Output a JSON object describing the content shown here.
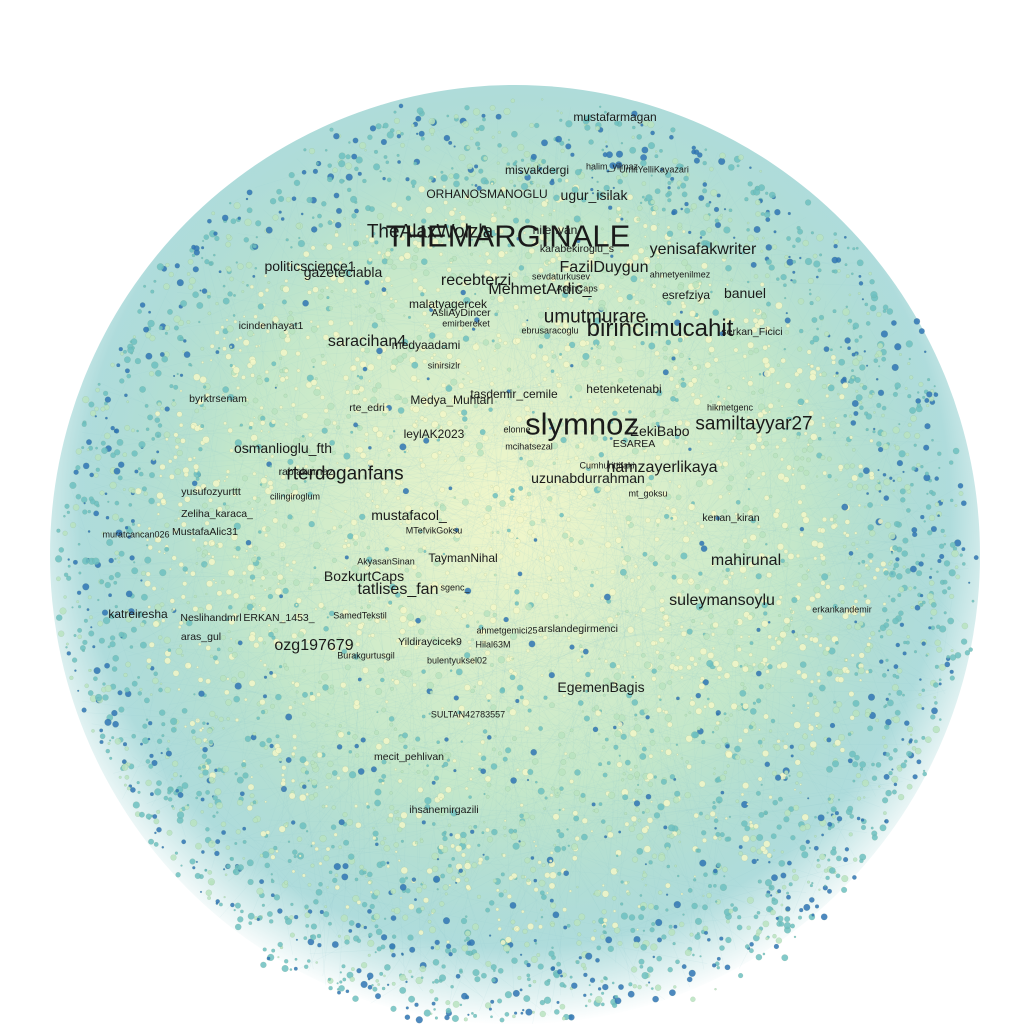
{
  "graph": {
    "colors": {
      "background": "#ffffff",
      "node_light": "#f3f7c8",
      "node_mid": "#b9e3c0",
      "node_teal": "#6dbfbf",
      "node_dark": "#2f74b4",
      "edge": "#8fc7cf",
      "label": "#1a1a1a"
    },
    "labels": [
      {
        "text": "THEMARGINALE",
        "tier": 1
      },
      {
        "text": "TheAlaxWolzla",
        "tier": 3
      },
      {
        "text": "nilenyan",
        "tier": 6
      },
      {
        "text": "slymnoz",
        "tier": 1
      },
      {
        "text": "birincimucahit",
        "tier": 2
      },
      {
        "text": "samiltayyar27",
        "tier": 3
      },
      {
        "text": "umutmurare",
        "tier": 3
      },
      {
        "text": "rterdoganfans",
        "tier": 3
      },
      {
        "text": "hamzayerlikaya",
        "tier": 4
      },
      {
        "text": "recebterzi",
        "tier": 4
      },
      {
        "text": "yenisafakwriter",
        "tier": 4
      },
      {
        "text": "FazilDuygun",
        "tier": 4
      },
      {
        "text": "MehmetArdic_",
        "tier": 4
      },
      {
        "text": "tatlises_fan",
        "tier": 4
      },
      {
        "text": "saracihan4",
        "tier": 4
      },
      {
        "text": "suleymansoylu",
        "tier": 4
      },
      {
        "text": "mahirunal",
        "tier": 4
      },
      {
        "text": "ozg197679",
        "tier": 4
      },
      {
        "text": "politicscience1",
        "tier": 5
      },
      {
        "text": "gazeteciabla",
        "tier": 5
      },
      {
        "text": "ZekiBabo",
        "tier": 5
      },
      {
        "text": "uzunabdurrahman",
        "tier": 5
      },
      {
        "text": "mustafacol_",
        "tier": 5
      },
      {
        "text": "BozkurtCaps",
        "tier": 5
      },
      {
        "text": "ugur_isilak",
        "tier": 5
      },
      {
        "text": "banuel",
        "tier": 5
      },
      {
        "text": "EgemenBagis",
        "tier": 5
      },
      {
        "text": "osmanlioglu_fth",
        "tier": 5
      },
      {
        "text": "mustafarmagan",
        "tier": 6
      },
      {
        "text": "ORHANOSMANOGLU",
        "tier": 6
      },
      {
        "text": "misvakdergi",
        "tier": 6
      },
      {
        "text": "halim_yilmaz",
        "tier": 8
      },
      {
        "text": "UmitYelliKayazari",
        "tier": 8
      },
      {
        "text": "karabekiroglu_s",
        "tier": 7
      },
      {
        "text": "sevdaturkusev",
        "tier": 8
      },
      {
        "text": "ahmetyenilmez",
        "tier": 8
      },
      {
        "text": "AsrinCaps",
        "tier": 8
      },
      {
        "text": "esrefziya",
        "tier": 6
      },
      {
        "text": "serkan_Ficici",
        "tier": 7
      },
      {
        "text": "malatyagercek",
        "tier": 6
      },
      {
        "text": "AsliAyDincer",
        "tier": 7
      },
      {
        "text": "emirbereket",
        "tier": 8
      },
      {
        "text": "ebrusaracoglu",
        "tier": 8
      },
      {
        "text": "icindenhayat1",
        "tier": 7
      },
      {
        "text": "medyaadami",
        "tier": 6
      },
      {
        "text": "sinirsizlr",
        "tier": 8
      },
      {
        "text": "hetenketenabi",
        "tier": 6
      },
      {
        "text": "tasdemir_cemile",
        "tier": 6
      },
      {
        "text": "byrktrsenam",
        "tier": 7
      },
      {
        "text": "rte_edri",
        "tier": 7
      },
      {
        "text": "Medya_Muhtarı",
        "tier": 6
      },
      {
        "text": "hikmetgenc",
        "tier": 8
      },
      {
        "text": "leylAK2023",
        "tier": 6
      },
      {
        "text": "elonne",
        "tier": 8
      },
      {
        "text": "mcihatsezal",
        "tier": 8
      },
      {
        "text": "ESAREA",
        "tier": 7
      },
      {
        "text": "Cumhurittifaki",
        "tier": 8
      },
      {
        "text": "rabiakurnaz",
        "tier": 7
      },
      {
        "text": "cilingiroglum",
        "tier": 8
      },
      {
        "text": "mt_goksu",
        "tier": 8
      },
      {
        "text": "yusufozyurttt",
        "tier": 7
      },
      {
        "text": "Zeliha_karaca_",
        "tier": 7
      },
      {
        "text": "MTefvikGoksu",
        "tier": 8
      },
      {
        "text": "kenan_kiran",
        "tier": 7
      },
      {
        "text": "muratcancan026",
        "tier": 8
      },
      {
        "text": "MustafaAlic31",
        "tier": 7
      },
      {
        "text": "AkyasanSinan",
        "tier": 8
      },
      {
        "text": "TaymanNihal",
        "tier": 6
      },
      {
        "text": "sgenc_",
        "tier": 8
      },
      {
        "text": "katreiresha",
        "tier": 6
      },
      {
        "text": "Neslihandmrl",
        "tier": 7
      },
      {
        "text": "ERKAN_1453_",
        "tier": 7
      },
      {
        "text": "SamedTekstil",
        "tier": 8
      },
      {
        "text": "arslandegirmenci",
        "tier": 7
      },
      {
        "text": "ahmetgemici25",
        "tier": 8
      },
      {
        "text": "erkankandemir",
        "tier": 8
      },
      {
        "text": "aras_gul",
        "tier": 7
      },
      {
        "text": "Yildiraycicek9",
        "tier": 7
      },
      {
        "text": "Hilal63M",
        "tier": 8
      },
      {
        "text": "Burakgurtusgil",
        "tier": 8
      },
      {
        "text": "bulentyuksel02",
        "tier": 8
      },
      {
        "text": "SULTAN42783557",
        "tier": 8
      },
      {
        "text": "mecit_pehlivan",
        "tier": 7
      },
      {
        "text": "ihsanemirgazili",
        "tier": 7
      }
    ]
  }
}
